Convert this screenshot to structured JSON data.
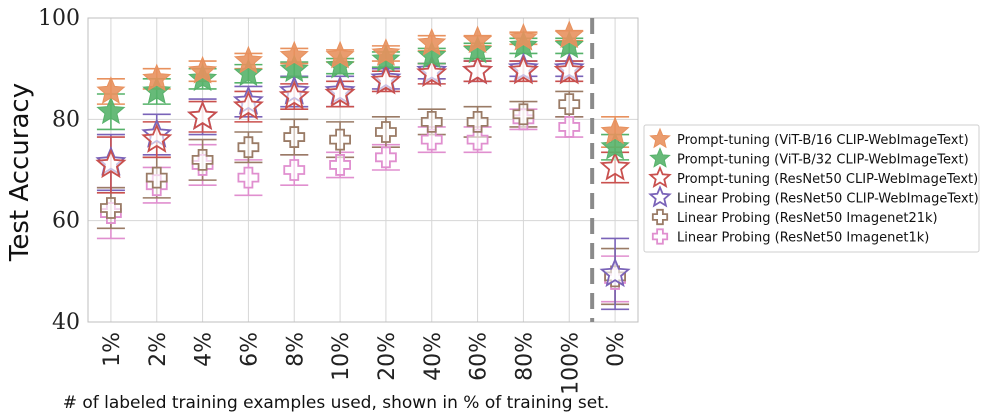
{
  "chart_data": {
    "type": "scatter",
    "xlabel": "# of labeled training examples used, shown in % of training set.",
    "ylabel": "Test Accuracy",
    "categories": [
      "1%",
      "2%",
      "4%",
      "6%",
      "8%",
      "10%",
      "20%",
      "40%",
      "60%",
      "80%",
      "100%",
      "0%"
    ],
    "ylim": [
      40,
      100
    ],
    "yticks": [
      40,
      60,
      80,
      100
    ],
    "grid": true,
    "separator_after_category": "100%",
    "legend_position": "right",
    "series": [
      {
        "name": "Prompt-tuning (ViT-B/16 CLIP-WebImageText)",
        "color": "#e8915e",
        "marker": "star",
        "filled": true,
        "values": [
          85.5,
          88.0,
          89.5,
          91.5,
          92.5,
          92.5,
          93.0,
          95.0,
          95.5,
          96.0,
          96.5,
          77.5
        ],
        "errors": [
          2.5,
          2.0,
          2.0,
          1.5,
          1.5,
          1.2,
          1.5,
          1.5,
          1.0,
          1.2,
          1.0,
          3.0
        ]
      },
      {
        "name": "Prompt-tuning (ViT-B/32 CLIP-WebImageText)",
        "color": "#56b26a",
        "marker": "star",
        "filled": true,
        "values": [
          81.5,
          85.5,
          88.0,
          89.0,
          89.8,
          90.5,
          91.8,
          92.5,
          93.5,
          94.5,
          94.5,
          74.5
        ],
        "errors": [
          3.5,
          2.5,
          2.0,
          1.8,
          1.5,
          1.5,
          1.5,
          1.5,
          1.5,
          1.5,
          1.5,
          2.5
        ]
      },
      {
        "name": "Prompt-tuning (ResNet50 CLIP-WebImageText)",
        "color": "#c9504e",
        "marker": "star",
        "filled": false,
        "values": [
          71.0,
          76.0,
          80.5,
          82.5,
          84.5,
          85.0,
          87.5,
          89.0,
          89.5,
          89.5,
          89.5,
          70.5
        ],
        "errors": [
          5.5,
          3.5,
          3.0,
          3.0,
          2.5,
          2.5,
          2.0,
          2.0,
          2.0,
          2.0,
          2.0,
          3.0
        ]
      },
      {
        "name": "Linear Probing (ResNet50 CLIP-WebImageText)",
        "color": "#7a63b8",
        "marker": "star",
        "filled": false,
        "values": [
          71.5,
          77.0,
          80.5,
          83.5,
          85.5,
          85.5,
          88.0,
          89.5,
          89.5,
          90.0,
          90.0,
          49.5
        ],
        "errors": [
          5.5,
          4.0,
          3.5,
          3.0,
          3.0,
          3.0,
          2.0,
          1.5,
          2.0,
          1.5,
          1.5,
          7.0
        ]
      },
      {
        "name": "Linear Probing (ResNet50 Imagenet21k)",
        "color": "#9a7b66",
        "marker": "plus",
        "filled": false,
        "values": [
          62.5,
          68.5,
          72.0,
          74.5,
          76.5,
          76.0,
          77.5,
          79.5,
          79.5,
          81.0,
          83.0,
          49.0
        ],
        "errors": [
          4.0,
          4.0,
          4.0,
          3.0,
          3.5,
          3.5,
          3.0,
          2.5,
          3.0,
          2.5,
          2.5,
          5.5
        ]
      },
      {
        "name": "Linear Probing (ResNet50 Imagenet1k)",
        "color": "#e08fcf",
        "marker": "plus",
        "filled": false,
        "values": [
          61.5,
          67.0,
          71.0,
          68.5,
          70.0,
          71.0,
          72.5,
          76.0,
          76.0,
          80.0,
          78.5,
          48.5
        ],
        "errors": [
          5.0,
          3.5,
          4.0,
          3.5,
          3.0,
          2.5,
          2.5,
          2.5,
          2.5,
          2.0,
          2.0,
          4.5
        ]
      }
    ]
  }
}
